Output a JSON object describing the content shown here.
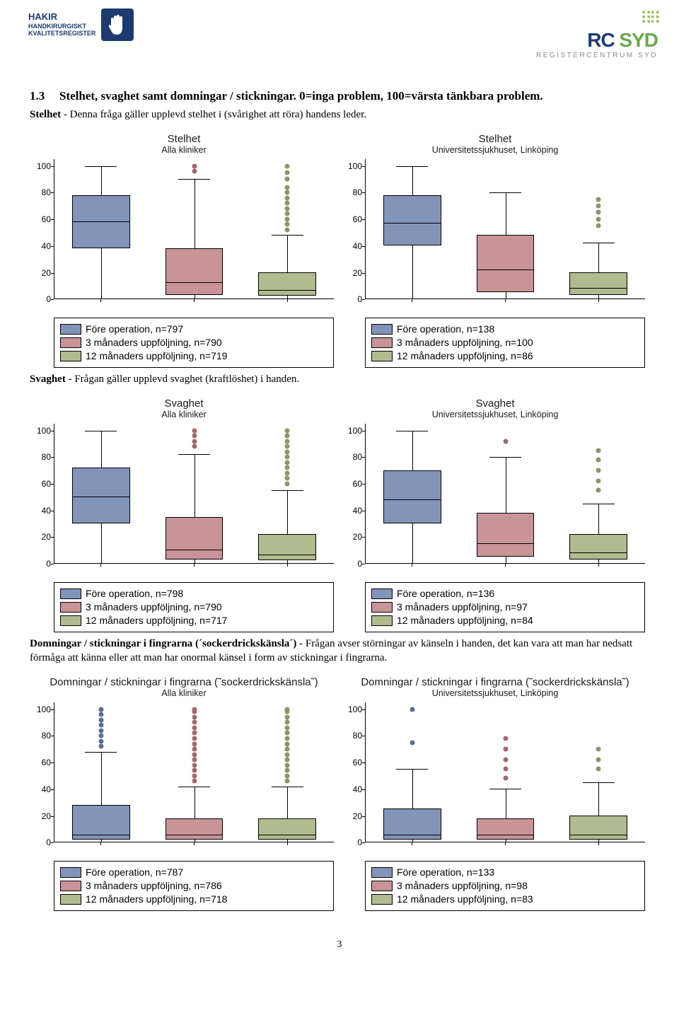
{
  "header": {
    "left_line1": "HAKIR",
    "left_line2": "HANDKIRURGISKT",
    "left_line3": "KVALITETSREGISTER",
    "right_name": "RC",
    "right_suffix": " SYD",
    "right_sub": "REGISTERCENTRUM SYD"
  },
  "section": {
    "num": "1.3",
    "title": "Stelhet, svaghet samt domningar / stickningar. 0=inga problem, 100=värsta tänkbara problem."
  },
  "intros": {
    "stelhet": {
      "lead": "Stelhet",
      "rest": " - Denna fråga gäller upplevd stelhet i (svårighet att röra) handens leder."
    },
    "svaghet": {
      "lead": "Svaghet",
      "rest": " - Frågan gäller upplevd svaghet (kraftlöshet) i handen."
    },
    "domningar": {
      "lead": "Domningar / stickningar i fingrarna (´sockerdrickskänsla´)",
      "rest": " - Frågan avser störningar av känseln i handen, det kan vara att man har nedsatt förmåga att känna eller att man har onormal känsel i form av stickningar i fingrarna."
    }
  },
  "colors": {
    "c1": "#8294b8",
    "c2": "#c99498",
    "c3": "#b0bb8f",
    "out1": "#5a6f97",
    "out2": "#a06a6f",
    "out3": "#8a9766",
    "bg": "#ffffff"
  },
  "yaxis": {
    "min": 0,
    "max": 105,
    "ticks": [
      0,
      20,
      40,
      60,
      80,
      100
    ]
  },
  "charts": [
    {
      "row": "stelhet",
      "side": "left",
      "title": "Stelhet",
      "sub": "Alla kliniker",
      "boxes": [
        {
          "q1": 38,
          "q3": 78,
          "med": 58,
          "wl": 0,
          "wh": 100,
          "outs": []
        },
        {
          "q1": 3,
          "q3": 38,
          "med": 12,
          "wl": 0,
          "wh": 90,
          "outs": [
            96,
            100
          ]
        },
        {
          "q1": 2,
          "q3": 20,
          "med": 6,
          "wl": 0,
          "wh": 48,
          "outs": [
            52,
            56,
            60,
            64,
            68,
            72,
            76,
            80,
            84,
            90,
            95,
            100
          ]
        }
      ],
      "legend": [
        "Före operation, n=797",
        "3 månaders uppföljning, n=790",
        "12 månaders uppföljning, n=719"
      ]
    },
    {
      "row": "stelhet",
      "side": "right",
      "title": "Stelhet",
      "sub": "Universitetssjukhuset, Linköping",
      "boxes": [
        {
          "q1": 40,
          "q3": 78,
          "med": 57,
          "wl": 0,
          "wh": 100,
          "outs": []
        },
        {
          "q1": 5,
          "q3": 48,
          "med": 22,
          "wl": 0,
          "wh": 80,
          "outs": []
        },
        {
          "q1": 3,
          "q3": 20,
          "med": 8,
          "wl": 0,
          "wh": 42,
          "outs": [
            55,
            60,
            65,
            70,
            75
          ]
        }
      ],
      "legend": [
        "Före operation, n=138",
        "3 månaders uppföljning, n=100",
        "12 månaders uppföljning, n=86"
      ]
    },
    {
      "row": "svaghet",
      "side": "left",
      "title": "Svaghet",
      "sub": "Alla kliniker",
      "boxes": [
        {
          "q1": 30,
          "q3": 72,
          "med": 50,
          "wl": 0,
          "wh": 100,
          "outs": []
        },
        {
          "q1": 3,
          "q3": 35,
          "med": 10,
          "wl": 0,
          "wh": 82,
          "outs": [
            88,
            92,
            96,
            100
          ]
        },
        {
          "q1": 2,
          "q3": 22,
          "med": 6,
          "wl": 0,
          "wh": 55,
          "outs": [
            60,
            64,
            68,
            72,
            76,
            80,
            84,
            88,
            92,
            96,
            100
          ]
        }
      ],
      "legend": [
        "Före operation, n=798",
        "3 månaders uppföljning, n=790",
        "12 månaders uppföljning, n=717"
      ]
    },
    {
      "row": "svaghet",
      "side": "right",
      "title": "Svaghet",
      "sub": "Universitetssjukhuset, Linköping",
      "boxes": [
        {
          "q1": 30,
          "q3": 70,
          "med": 48,
          "wl": 0,
          "wh": 100,
          "outs": []
        },
        {
          "q1": 5,
          "q3": 38,
          "med": 15,
          "wl": 0,
          "wh": 80,
          "outs": [
            92
          ]
        },
        {
          "q1": 3,
          "q3": 22,
          "med": 8,
          "wl": 0,
          "wh": 45,
          "outs": [
            55,
            62,
            70,
            78,
            85
          ]
        }
      ],
      "legend": [
        "Före operation, n=136",
        "3 månaders uppföljning, n=97",
        "12 månaders uppföljning, n=84"
      ]
    },
    {
      "row": "domningar",
      "side": "left",
      "title": "Domningar / stickningar i fingrarna (˜sockerdrickskänsla˜)",
      "sub": "Alla kliniker",
      "boxes": [
        {
          "q1": 2,
          "q3": 28,
          "med": 5,
          "wl": 0,
          "wh": 68,
          "outs": [
            72,
            76,
            80,
            84,
            88,
            92,
            96,
            100
          ]
        },
        {
          "q1": 2,
          "q3": 18,
          "med": 5,
          "wl": 0,
          "wh": 42,
          "outs": [
            46,
            50,
            54,
            58,
            62,
            66,
            70,
            74,
            78,
            82,
            86,
            90,
            94,
            98,
            100
          ]
        },
        {
          "q1": 2,
          "q3": 18,
          "med": 5,
          "wl": 0,
          "wh": 42,
          "outs": [
            46,
            50,
            54,
            58,
            62,
            66,
            70,
            74,
            78,
            82,
            86,
            90,
            94,
            98,
            100
          ]
        }
      ],
      "legend": [
        "Före operation, n=787",
        "3 månaders uppföljning, n=786",
        "12 månaders uppföljning, n=718"
      ]
    },
    {
      "row": "domningar",
      "side": "right",
      "title": "Domningar / stickningar i fingrarna (˜sockerdrickskänsla˜)",
      "sub": "Universitetssjukhuset, Linköping",
      "boxes": [
        {
          "q1": 2,
          "q3": 25,
          "med": 5,
          "wl": 0,
          "wh": 55,
          "outs": [
            75,
            100
          ]
        },
        {
          "q1": 2,
          "q3": 18,
          "med": 5,
          "wl": 0,
          "wh": 40,
          "outs": [
            48,
            55,
            62,
            70,
            78
          ]
        },
        {
          "q1": 2,
          "q3": 20,
          "med": 5,
          "wl": 0,
          "wh": 45,
          "outs": [
            55,
            62,
            70
          ]
        }
      ],
      "legend": [
        "Före operation, n=133",
        "3 månaders uppföljning, n=98",
        "12 månaders uppföljning, n=83"
      ]
    }
  ],
  "page_number": "3"
}
